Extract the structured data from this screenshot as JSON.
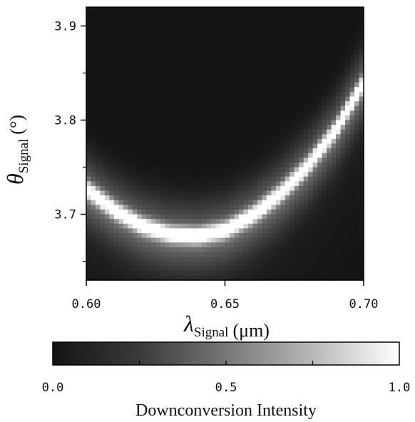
{
  "chart_data": [
    {
      "type": "heatmap",
      "title": "",
      "xlabel": {
        "symbol": "λ",
        "subscript": "Signal",
        "unit": "(μm)"
      },
      "ylabel": {
        "symbol": "θ",
        "subscript": "Signal",
        "unit": "(°)"
      },
      "xlim": [
        0.6,
        0.7
      ],
      "ylim": [
        3.63,
        3.92
      ],
      "x_ticks": [
        0.6,
        0.65,
        0.7
      ],
      "x_tick_labels": [
        "0.60",
        "0.65",
        "0.70"
      ],
      "y_ticks": [
        3.7,
        3.8,
        3.9
      ],
      "y_tick_labels": [
        "3.7",
        "3.8",
        "3.9"
      ],
      "y_minor_ticks": [
        3.65,
        3.75,
        3.85
      ],
      "colormap": "grayscale",
      "ridge": {
        "description_points_x": [
          0.6,
          0.61,
          0.62,
          0.63,
          0.64,
          0.65,
          0.66,
          0.67,
          0.68,
          0.69,
          0.7
        ],
        "description_points_y": [
          3.727,
          3.705,
          3.688,
          3.679,
          3.677,
          3.683,
          3.699,
          3.722,
          3.752,
          3.79,
          3.84
        ],
        "peak_intensity": 1.0
      },
      "grid": false
    },
    {
      "type": "colorbar",
      "title": "Downconversion Intensity",
      "range": [
        0.0,
        1.0
      ],
      "ticks": [
        0.0,
        0.5,
        1.0
      ],
      "tick_labels": [
        "0.0",
        "0.5",
        "1.0"
      ]
    }
  ]
}
